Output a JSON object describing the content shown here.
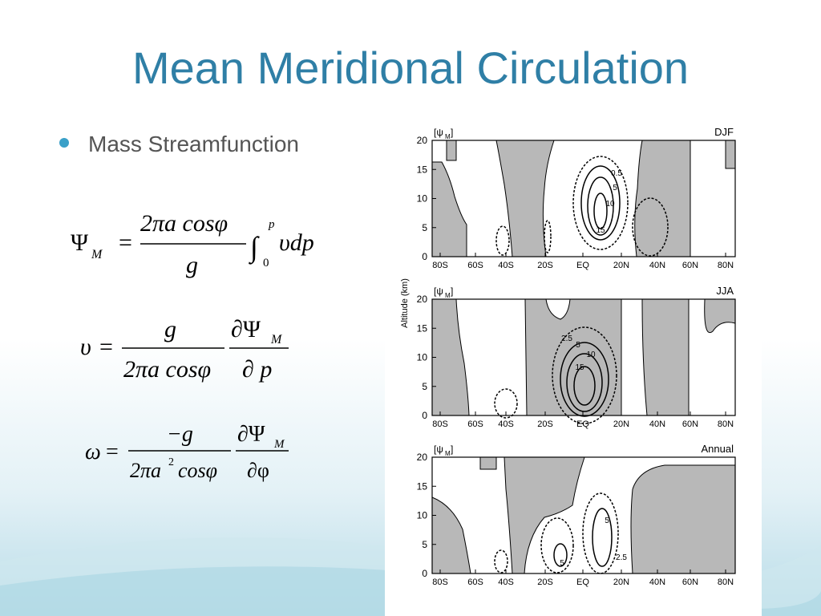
{
  "title": "Mean Meridional Circulation",
  "bullets": [
    "Mass Streamfunction"
  ],
  "equations": [
    {
      "lhs": "Ψ",
      "lhs_sub": "M",
      "eq": "=",
      "num": "2πa cosφ",
      "den": "g",
      "int": "∫",
      "int_upper": "p",
      "int_lower": "0",
      "integrand": "υdp"
    },
    {
      "lhs": "υ",
      "eq": "=",
      "num1": "g",
      "den1": "2πa cosφ",
      "num2": "∂Ψ",
      "num2_sub": "M",
      "den2": "∂ p"
    },
    {
      "lhs": "ω",
      "eq": "=",
      "num1": "−g",
      "den1": "2πa",
      "den1_sup": "2",
      "den1_end": "cosφ",
      "num2": "∂Ψ",
      "num2_sub": "M",
      "den2": "∂φ"
    }
  ],
  "figure": {
    "y_axis_label": "Altitude (km)",
    "yticks": [
      "20",
      "15",
      "10",
      "5",
      "0"
    ],
    "xticks": [
      "80S",
      "60S",
      "40S",
      "20S",
      "EQ",
      "20N",
      "40N",
      "60N",
      "80N"
    ],
    "panels": [
      {
        "symbol": "[ψ",
        "symbol_sub": "M",
        "symbol_end": "]",
        "label": "DJF",
        "contour_labels": [
          "0.5",
          "5",
          "10",
          "15"
        ]
      },
      {
        "symbol": "[ψ",
        "symbol_sub": "M",
        "symbol_end": "]",
        "label": "JJA",
        "contour_labels": [
          "2.5",
          "5",
          "10",
          "15"
        ]
      },
      {
        "symbol": "[ψ",
        "symbol_sub": "M",
        "symbol_end": "]",
        "label": "Annual",
        "contour_labels": [
          "5",
          "5",
          "2.5"
        ]
      }
    ]
  }
}
